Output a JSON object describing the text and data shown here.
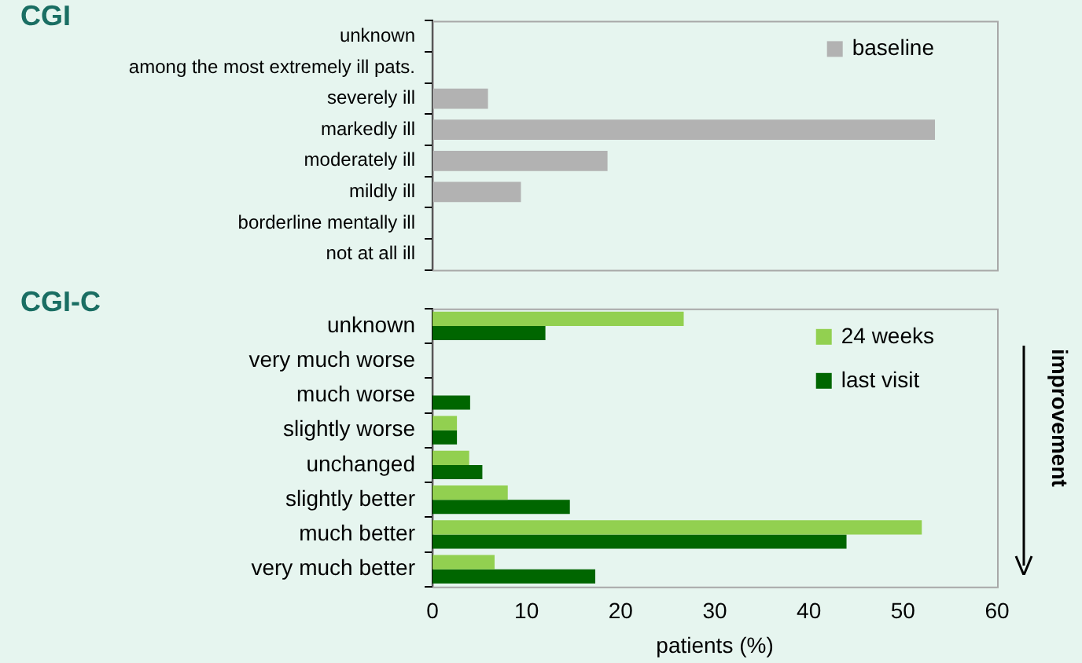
{
  "chart_data": [
    {
      "type": "bar",
      "orientation": "horizontal",
      "title": "CGI",
      "categories": [
        "unknown",
        "among the most extremely ill pats.",
        "severely ill",
        "markedly ill",
        "moderately ill",
        "mildly ill",
        "borderline mentally ill",
        "not at all ill"
      ],
      "series": [
        {
          "name": "baseline",
          "color": "#b2b2b2",
          "values": [
            0,
            0,
            5.9,
            53.4,
            18.6,
            9.4,
            0,
            0
          ]
        }
      ],
      "xlim": [
        0,
        60
      ],
      "tick_labels": "y",
      "grid": false,
      "legend": "top right"
    },
    {
      "type": "bar",
      "orientation": "horizontal",
      "title": "CGI-C",
      "xlabel": "patients (%)",
      "categories": [
        "unknown",
        "very much worse",
        "much worse",
        "slightly worse",
        "unchanged",
        "slightly better",
        "much better",
        "very much better"
      ],
      "series": [
        {
          "name": "24 weeks",
          "color": "#92d050",
          "values": [
            26.7,
            0,
            0,
            2.6,
            3.9,
            8.0,
            52.0,
            6.6
          ]
        },
        {
          "name": "last visit",
          "color": "#006600",
          "values": [
            12.0,
            0,
            4.0,
            2.6,
            5.3,
            14.6,
            44.0,
            17.3
          ]
        }
      ],
      "xlim": [
        0,
        60
      ],
      "xticks": [
        0,
        10,
        20,
        30,
        40,
        50,
        60
      ],
      "grid": false,
      "legend": "top right",
      "annotations": [
        "improvement"
      ]
    }
  ]
}
